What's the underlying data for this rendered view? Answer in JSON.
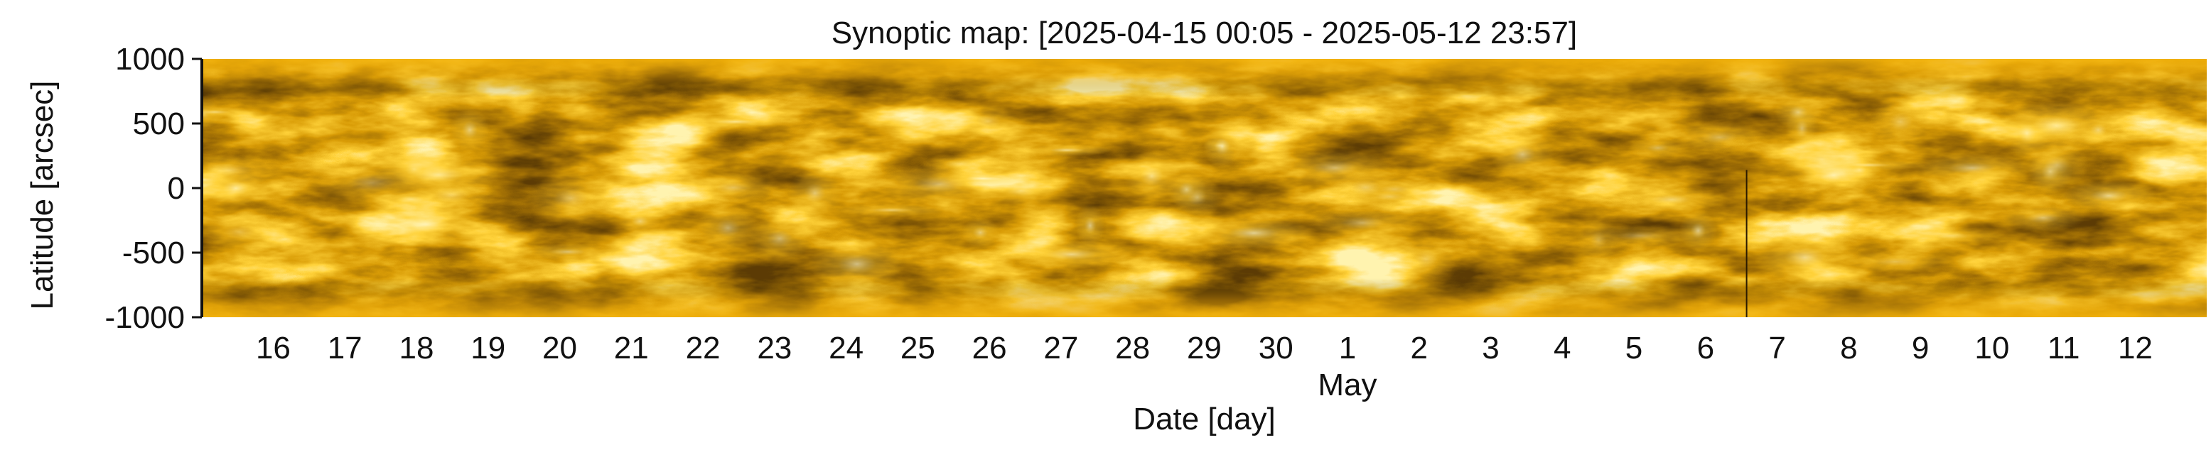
{
  "chart_data": {
    "type": "heatmap",
    "title": "Synoptic map: [2025-04-15 00:05 - 2025-05-12 23:57]",
    "xlabel": "Date [day]",
    "ylabel": "Latitude [arcsec]",
    "month_label": "May",
    "x_start": "2025-04-15 00:05",
    "x_end": "2025-05-12 23:57",
    "ylim": [
      -1000,
      1000
    ],
    "y_ticks": [
      -1000,
      -500,
      0,
      500,
      1000
    ],
    "x_ticks": [
      "16",
      "17",
      "18",
      "19",
      "20",
      "21",
      "22",
      "23",
      "24",
      "25",
      "26",
      "27",
      "28",
      "29",
      "30",
      "1",
      "2",
      "3",
      "4",
      "5",
      "6",
      "7",
      "8",
      "9",
      "10",
      "11",
      "12"
    ],
    "x_tick_dates": [
      "2025-04-16",
      "2025-04-17",
      "2025-04-18",
      "2025-04-19",
      "2025-04-20",
      "2025-04-21",
      "2025-04-22",
      "2025-04-23",
      "2025-04-24",
      "2025-04-25",
      "2025-04-26",
      "2025-04-27",
      "2025-04-28",
      "2025-04-29",
      "2025-04-30",
      "2025-05-01",
      "2025-05-02",
      "2025-05-03",
      "2025-05-04",
      "2025-05-05",
      "2025-05-06",
      "2025-05-07",
      "2025-05-08",
      "2025-05-09",
      "2025-05-10",
      "2025-05-11",
      "2025-05-12"
    ],
    "colormap_colors": [
      "#5c3c05",
      "#9a6a05",
      "#d99c06",
      "#ffd23a",
      "#fff3b0"
    ],
    "grid": false,
    "legend": "none"
  }
}
